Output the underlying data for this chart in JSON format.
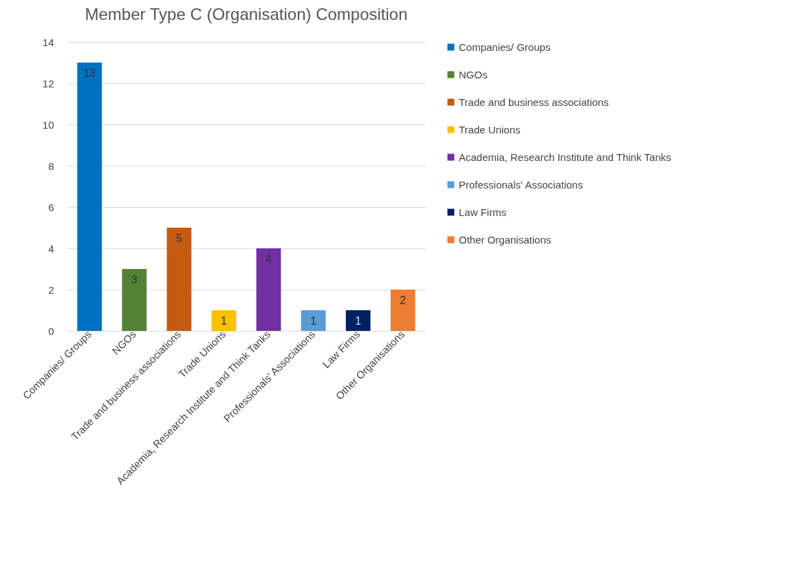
{
  "chart_data": {
    "type": "bar",
    "title": "Member Type C (Organisation) Composition",
    "categories": [
      "Companies/ Groups",
      "NGOs",
      "Trade and business associations",
      "Trade Unions",
      "Academia, Research Institute and Think Tanks",
      "Professionals' Associations",
      "Law Firms",
      "Other Organisations"
    ],
    "series": [
      {
        "name": "Companies/ Groups",
        "color": "#0070c0",
        "values": [
          13,
          null,
          null,
          null,
          null,
          null,
          null,
          null
        ]
      },
      {
        "name": "NGOs",
        "color": "#548235",
        "values": [
          null,
          3,
          null,
          null,
          null,
          null,
          null,
          null
        ]
      },
      {
        "name": "Trade and business associations",
        "color": "#c55a11",
        "values": [
          null,
          null,
          5,
          null,
          null,
          null,
          null,
          null
        ]
      },
      {
        "name": "Trade Unions",
        "color": "#ffc000",
        "values": [
          null,
          null,
          null,
          1,
          null,
          null,
          null,
          null
        ]
      },
      {
        "name": "Academia, Research Institute and Think Tanks",
        "color": "#7030a0",
        "values": [
          null,
          null,
          null,
          null,
          4,
          null,
          null,
          null
        ]
      },
      {
        "name": "Professionals' Associations",
        "color": "#5b9bd5",
        "values": [
          null,
          null,
          null,
          null,
          null,
          1,
          null,
          null
        ]
      },
      {
        "name": "Law Firms",
        "color": "#002060",
        "values": [
          null,
          null,
          null,
          null,
          null,
          null,
          1,
          null
        ]
      },
      {
        "name": "Other Organisations",
        "color": "#ed7d31",
        "values": [
          null,
          null,
          null,
          null,
          null,
          null,
          null,
          2
        ]
      }
    ],
    "stacked": true,
    "ylim": [
      0,
      14
    ],
    "yticks": [
      0,
      2,
      4,
      6,
      8,
      10,
      12,
      14
    ],
    "grid": "y",
    "legend": "right",
    "data_labels": true
  }
}
